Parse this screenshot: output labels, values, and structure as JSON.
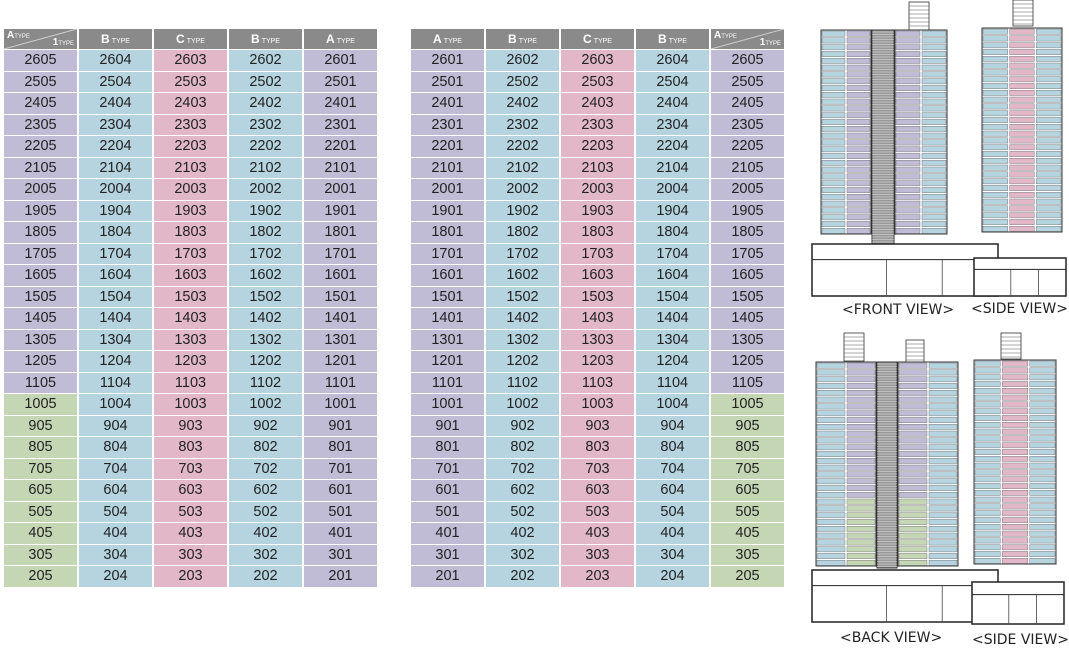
{
  "header_labels": {
    "a": {
      "big": "A",
      "small": "TYPE"
    },
    "b": {
      "big": "B",
      "small": "TYPE"
    },
    "c": {
      "big": "C",
      "small": "TYPE"
    },
    "one": {
      "big": "1",
      "small": "TYPE"
    }
  },
  "left_table": {
    "columns": [
      "corner",
      "B",
      "C",
      "B",
      "A"
    ],
    "rows": [
      [
        "2605",
        "2604",
        "2603",
        "2602",
        "2601"
      ],
      [
        "2505",
        "2504",
        "2503",
        "2502",
        "2501"
      ],
      [
        "2405",
        "2404",
        "2403",
        "2402",
        "2401"
      ],
      [
        "2305",
        "2304",
        "2303",
        "2302",
        "2301"
      ],
      [
        "2205",
        "2204",
        "2203",
        "2202",
        "2201"
      ],
      [
        "2105",
        "2104",
        "2103",
        "2102",
        "2101"
      ],
      [
        "2005",
        "2004",
        "2003",
        "2002",
        "2001"
      ],
      [
        "1905",
        "1904",
        "1903",
        "1902",
        "1901"
      ],
      [
        "1805",
        "1804",
        "1803",
        "1802",
        "1801"
      ],
      [
        "1705",
        "1704",
        "1703",
        "1702",
        "1701"
      ],
      [
        "1605",
        "1604",
        "1603",
        "1602",
        "1601"
      ],
      [
        "1505",
        "1504",
        "1503",
        "1502",
        "1501"
      ],
      [
        "1405",
        "1404",
        "1403",
        "1402",
        "1401"
      ],
      [
        "1305",
        "1304",
        "1303",
        "1302",
        "1301"
      ],
      [
        "1205",
        "1204",
        "1203",
        "1202",
        "1201"
      ],
      [
        "1105",
        "1104",
        "1103",
        "1102",
        "1101"
      ],
      [
        "1005",
        "1004",
        "1003",
        "1002",
        "1001"
      ],
      [
        "905",
        "904",
        "903",
        "902",
        "901"
      ],
      [
        "805",
        "804",
        "803",
        "802",
        "801"
      ],
      [
        "705",
        "704",
        "703",
        "702",
        "701"
      ],
      [
        "605",
        "604",
        "603",
        "602",
        "601"
      ],
      [
        "505",
        "504",
        "503",
        "502",
        "501"
      ],
      [
        "405",
        "404",
        "403",
        "402",
        "401"
      ],
      [
        "305",
        "304",
        "303",
        "302",
        "301"
      ],
      [
        "205",
        "204",
        "203",
        "202",
        "201"
      ]
    ]
  },
  "right_table": {
    "columns": [
      "A",
      "B",
      "C",
      "B",
      "corner"
    ],
    "rows": [
      [
        "2601",
        "2602",
        "2603",
        "2604",
        "2605"
      ],
      [
        "2501",
        "2502",
        "2503",
        "2504",
        "2505"
      ],
      [
        "2401",
        "2402",
        "2403",
        "2404",
        "2405"
      ],
      [
        "2301",
        "2302",
        "2303",
        "2304",
        "2305"
      ],
      [
        "2201",
        "2202",
        "2203",
        "2204",
        "2205"
      ],
      [
        "2101",
        "2102",
        "2103",
        "2104",
        "2105"
      ],
      [
        "2001",
        "2002",
        "2003",
        "2004",
        "2005"
      ],
      [
        "1901",
        "1902",
        "1903",
        "1904",
        "1905"
      ],
      [
        "1801",
        "1802",
        "1803",
        "1804",
        "1805"
      ],
      [
        "1701",
        "1702",
        "1703",
        "1704",
        "1705"
      ],
      [
        "1601",
        "1602",
        "1603",
        "1604",
        "1605"
      ],
      [
        "1501",
        "1502",
        "1503",
        "1504",
        "1505"
      ],
      [
        "1401",
        "1402",
        "1403",
        "1404",
        "1405"
      ],
      [
        "1301",
        "1302",
        "1303",
        "1304",
        "1305"
      ],
      [
        "1201",
        "1202",
        "1203",
        "1204",
        "1205"
      ],
      [
        "1101",
        "1102",
        "1103",
        "1104",
        "1105"
      ],
      [
        "1001",
        "1002",
        "1003",
        "1004",
        "1005"
      ],
      [
        "901",
        "902",
        "903",
        "904",
        "905"
      ],
      [
        "801",
        "802",
        "803",
        "804",
        "805"
      ],
      [
        "701",
        "702",
        "703",
        "704",
        "705"
      ],
      [
        "601",
        "602",
        "603",
        "604",
        "605"
      ],
      [
        "501",
        "502",
        "503",
        "504",
        "505"
      ],
      [
        "401",
        "402",
        "403",
        "404",
        "405"
      ],
      [
        "301",
        "302",
        "303",
        "304",
        "305"
      ],
      [
        "201",
        "202",
        "203",
        "204",
        "205"
      ]
    ]
  },
  "views": {
    "front": "<FRONT VIEW>",
    "side_top": "<SIDE VIEW>",
    "back": "<BACK VIEW>",
    "side_bottom": "<SIDE VIEW>"
  },
  "colors": {
    "type_a": "#c0bcd6",
    "type_b": "#b5d4e0",
    "type_c": "#e2b8c8",
    "type_1": "#c5d6b5",
    "header": "#8a8a8a"
  }
}
